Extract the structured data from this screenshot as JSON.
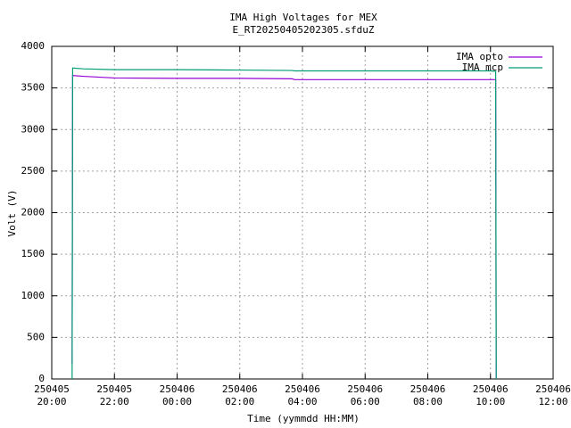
{
  "chart_data": {
    "type": "line",
    "title": "IMA High Voltages for MEX",
    "subtitle": "E_RT20250405202305.sfduZ",
    "x_label": "Time (yymmdd HH:MM)",
    "y_label": "Volt (V)",
    "x": [
      "250405 20:39",
      "250405 20:40",
      "250405 21:00",
      "250405 22:00",
      "250406 00:00",
      "250406 02:00",
      "250406 03:40",
      "250406 03:45",
      "250406 06:00",
      "250406 08:00",
      "250406 10:00",
      "250406 10:10",
      "250406 10:11"
    ],
    "series": [
      {
        "name": "IMA opto",
        "color": "#9400d3",
        "values": [
          180,
          3650,
          3640,
          3620,
          3615,
          3615,
          3610,
          3600,
          3600,
          3600,
          3600,
          3600,
          0
        ]
      },
      {
        "name": "IMA mcp",
        "color": "#009e73",
        "values": [
          0,
          3740,
          3730,
          3720,
          3720,
          3715,
          3710,
          3705,
          3705,
          3705,
          3705,
          3700,
          0
        ]
      }
    ],
    "xlim": [
      "250405 20:00",
      "250406 12:00"
    ],
    "xticks": [
      {
        "value": "250405 20:00",
        "label": [
          "250405",
          "20:00"
        ]
      },
      {
        "value": "250405 22:00",
        "label": [
          "250405",
          "22:00"
        ]
      },
      {
        "value": "250406 00:00",
        "label": [
          "250406",
          "00:00"
        ]
      },
      {
        "value": "250406 02:00",
        "label": [
          "250406",
          "02:00"
        ]
      },
      {
        "value": "250406 04:00",
        "label": [
          "250406",
          "04:00"
        ]
      },
      {
        "value": "250406 06:00",
        "label": [
          "250406",
          "06:00"
        ]
      },
      {
        "value": "250406 08:00",
        "label": [
          "250406",
          "08:00"
        ]
      },
      {
        "value": "250406 10:00",
        "label": [
          "250406",
          "10:00"
        ]
      },
      {
        "value": "250406 12:00",
        "label": [
          "250406",
          "12:00"
        ]
      }
    ],
    "ylim": [
      0,
      4000
    ],
    "yticks": [
      0,
      500,
      1000,
      1500,
      2000,
      2500,
      3000,
      3500,
      4000
    ],
    "grid": true,
    "legend": "top-right"
  }
}
